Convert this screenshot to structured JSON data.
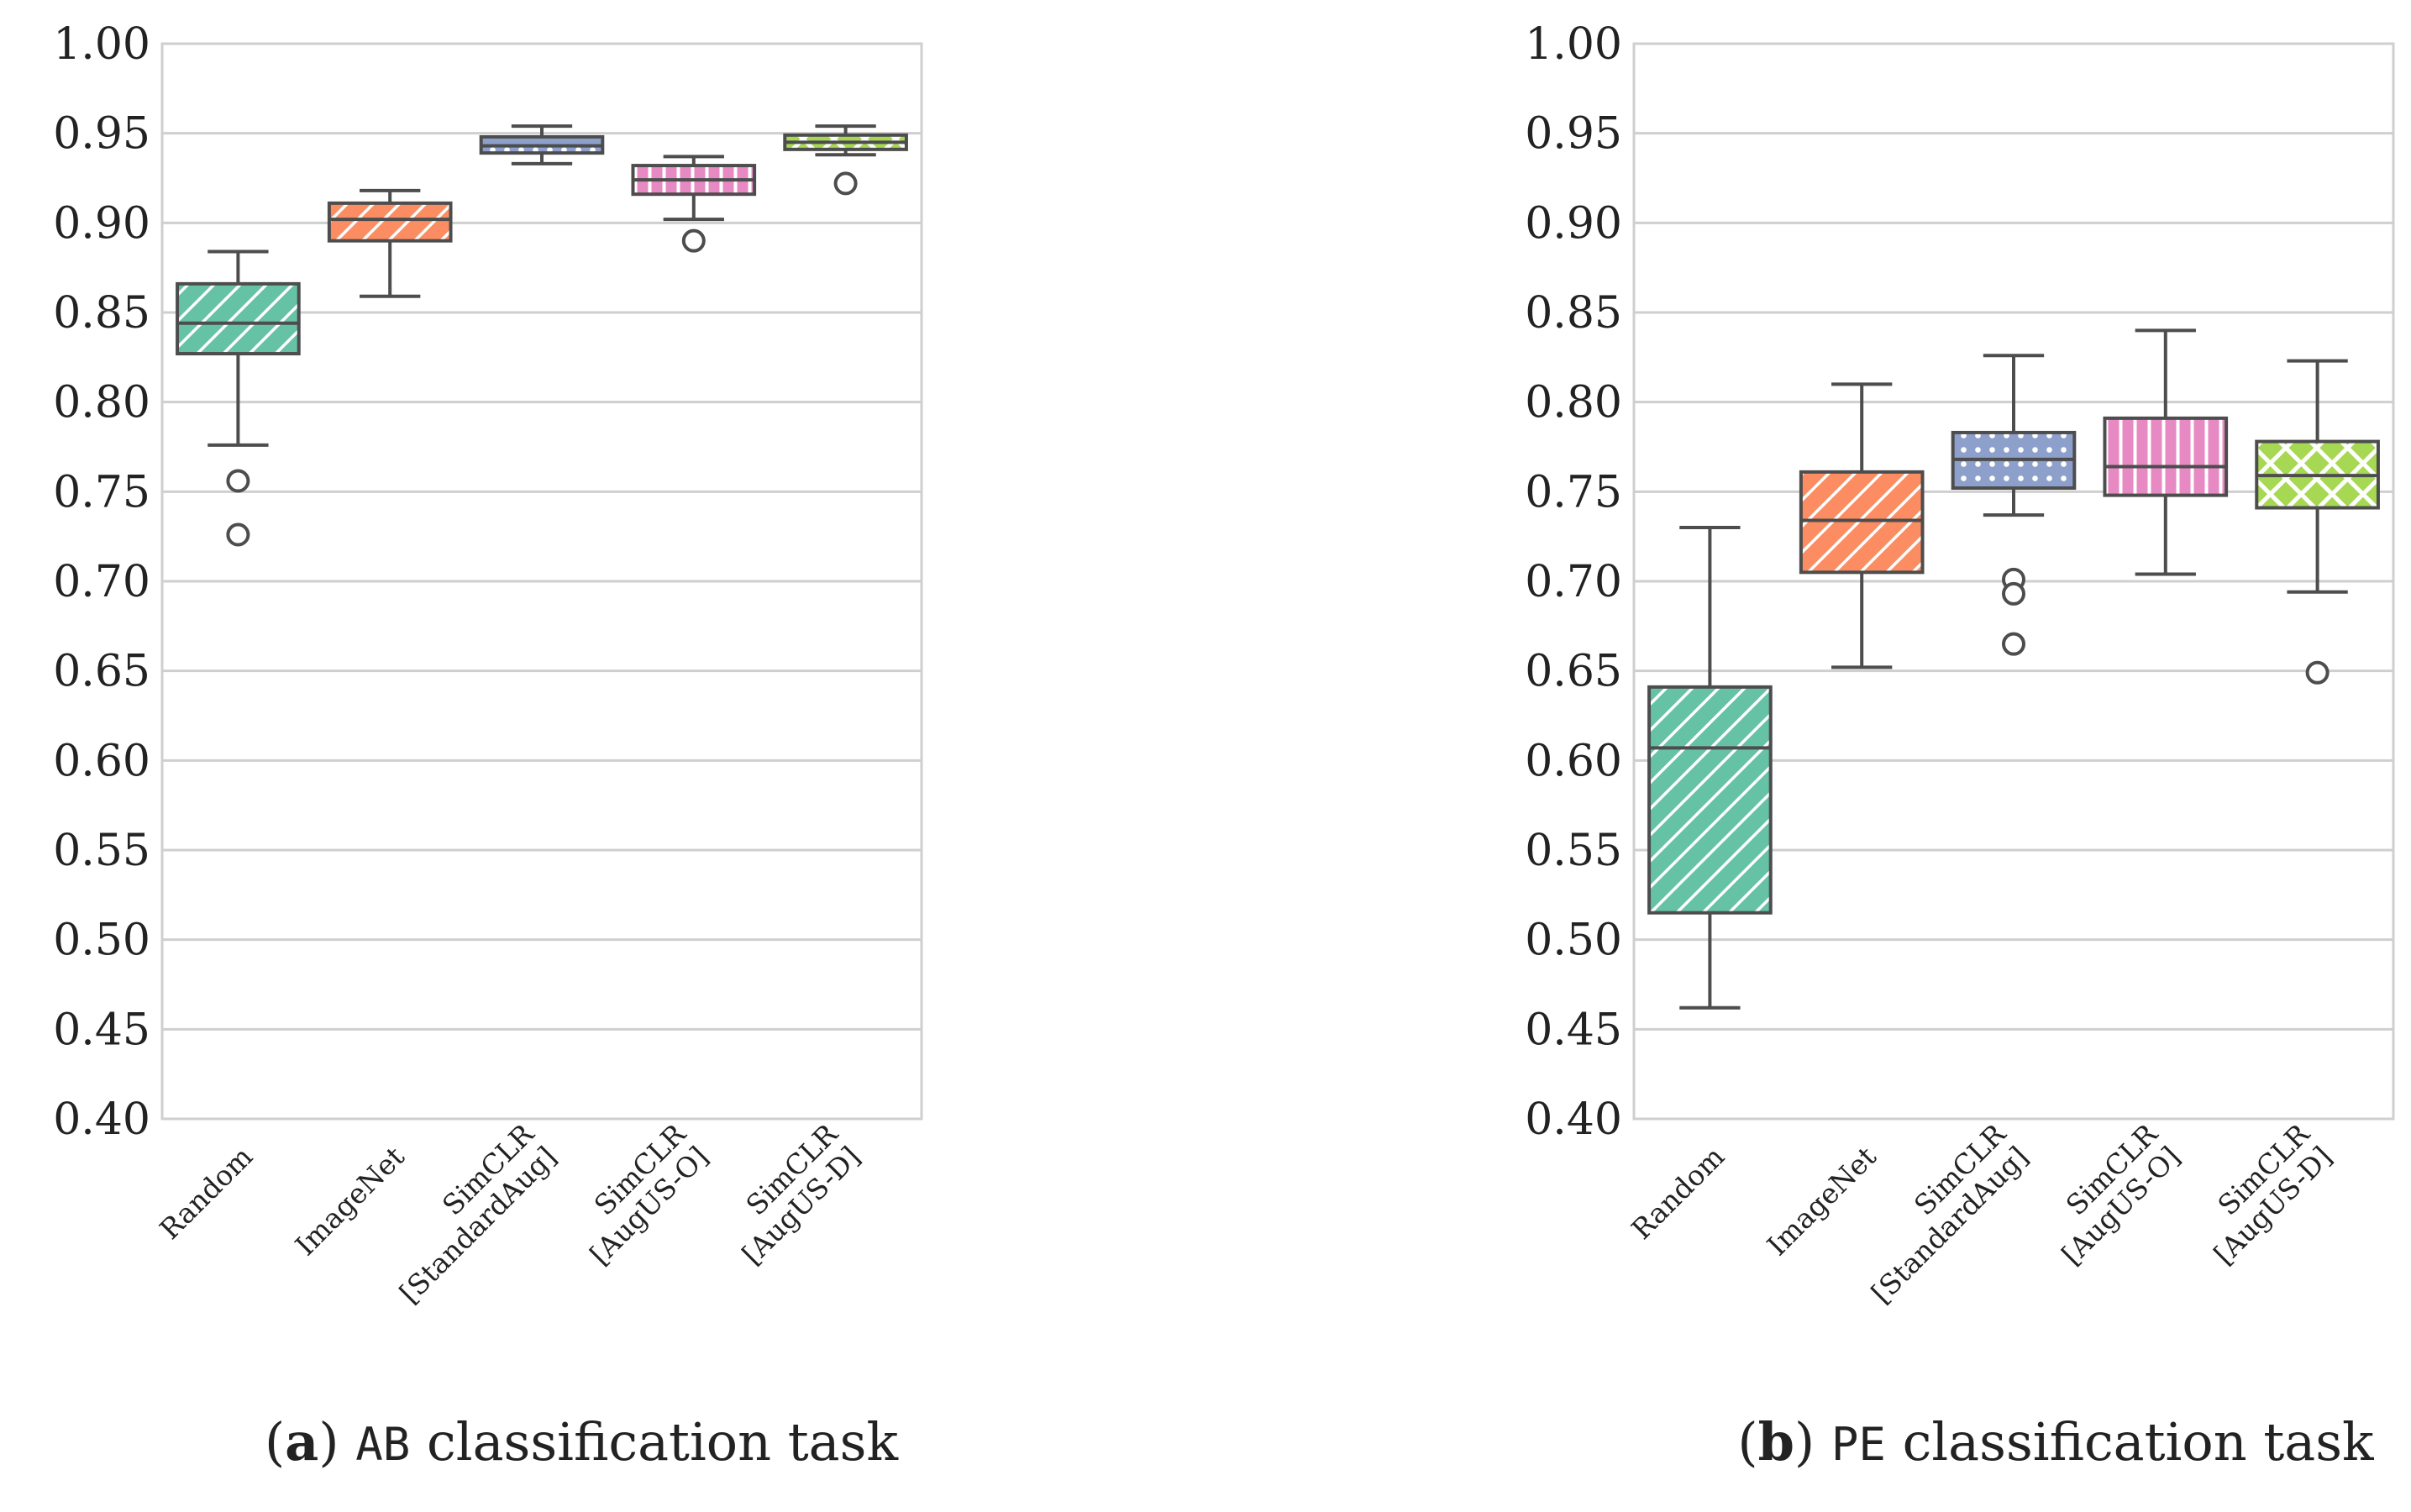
{
  "chart_data": [
    {
      "type": "box",
      "panel": "a",
      "caption": {
        "label": "a",
        "task": "AB",
        "suffix": "classification task"
      },
      "ylim": [
        0.4,
        1.0
      ],
      "yticks": [
        "0.40",
        "0.45",
        "0.50",
        "0.55",
        "0.60",
        "0.65",
        "0.70",
        "0.75",
        "0.80",
        "0.85",
        "0.90",
        "0.95",
        "1.00"
      ],
      "grid": true,
      "categories": [
        {
          "lines": [
            "Random"
          ]
        },
        {
          "lines": [
            "ImageNet"
          ]
        },
        {
          "lines": [
            "SimCLR",
            "[StandardAug]"
          ]
        },
        {
          "lines": [
            "SimCLR",
            "[AugUS-O]"
          ]
        },
        {
          "lines": [
            "SimCLR",
            "[AugUS-D]"
          ]
        }
      ],
      "boxes": [
        {
          "whislo": 0.776,
          "q1": 0.827,
          "med": 0.844,
          "q3": 0.866,
          "whishi": 0.884,
          "fliers": [
            0.756,
            0.726
          ],
          "color": "#66c2a5",
          "hatch": "diag"
        },
        {
          "whislo": 0.859,
          "q1": 0.89,
          "med": 0.902,
          "q3": 0.911,
          "whishi": 0.918,
          "fliers": [],
          "color": "#fc8d62",
          "hatch": "diag"
        },
        {
          "whislo": 0.933,
          "q1": 0.939,
          "med": 0.943,
          "q3": 0.948,
          "whishi": 0.954,
          "fliers": [],
          "color": "#8da0cb",
          "hatch": "dots"
        },
        {
          "whislo": 0.902,
          "q1": 0.916,
          "med": 0.924,
          "q3": 0.932,
          "whishi": 0.937,
          "fliers": [
            0.89
          ],
          "color": "#e78ac3",
          "hatch": "vert"
        },
        {
          "whislo": 0.938,
          "q1": 0.941,
          "med": 0.945,
          "q3": 0.949,
          "whishi": 0.954,
          "fliers": [
            0.922
          ],
          "color": "#a6d854",
          "hatch": "cross"
        }
      ]
    },
    {
      "type": "box",
      "panel": "b",
      "caption": {
        "label": "b",
        "task": "PE",
        "suffix": "classification task"
      },
      "ylim": [
        0.4,
        1.0
      ],
      "yticks": [
        "0.40",
        "0.45",
        "0.50",
        "0.55",
        "0.60",
        "0.65",
        "0.70",
        "0.75",
        "0.80",
        "0.85",
        "0.90",
        "0.95",
        "1.00"
      ],
      "grid": true,
      "categories": [
        {
          "lines": [
            "Random"
          ]
        },
        {
          "lines": [
            "ImageNet"
          ]
        },
        {
          "lines": [
            "SimCLR",
            "[StandardAug]"
          ]
        },
        {
          "lines": [
            "SimCLR",
            "[AugUS-O]"
          ]
        },
        {
          "lines": [
            "SimCLR",
            "[AugUS-D]"
          ]
        }
      ],
      "boxes": [
        {
          "whislo": 0.462,
          "q1": 0.515,
          "med": 0.607,
          "q3": 0.641,
          "whishi": 0.73,
          "fliers": [],
          "color": "#66c2a5",
          "hatch": "diag"
        },
        {
          "whislo": 0.652,
          "q1": 0.705,
          "med": 0.734,
          "q3": 0.761,
          "whishi": 0.81,
          "fliers": [],
          "color": "#fc8d62",
          "hatch": "diag"
        },
        {
          "whislo": 0.737,
          "q1": 0.752,
          "med": 0.768,
          "q3": 0.783,
          "whishi": 0.826,
          "fliers": [
            0.701,
            0.693,
            0.665
          ],
          "color": "#8da0cb",
          "hatch": "dots"
        },
        {
          "whislo": 0.704,
          "q1": 0.748,
          "med": 0.764,
          "q3": 0.791,
          "whishi": 0.84,
          "fliers": [],
          "color": "#e78ac3",
          "hatch": "vert"
        },
        {
          "whislo": 0.694,
          "q1": 0.741,
          "med": 0.759,
          "q3": 0.778,
          "whishi": 0.823,
          "fliers": [
            0.649
          ],
          "color": "#a6d854",
          "hatch": "cross"
        }
      ]
    }
  ]
}
